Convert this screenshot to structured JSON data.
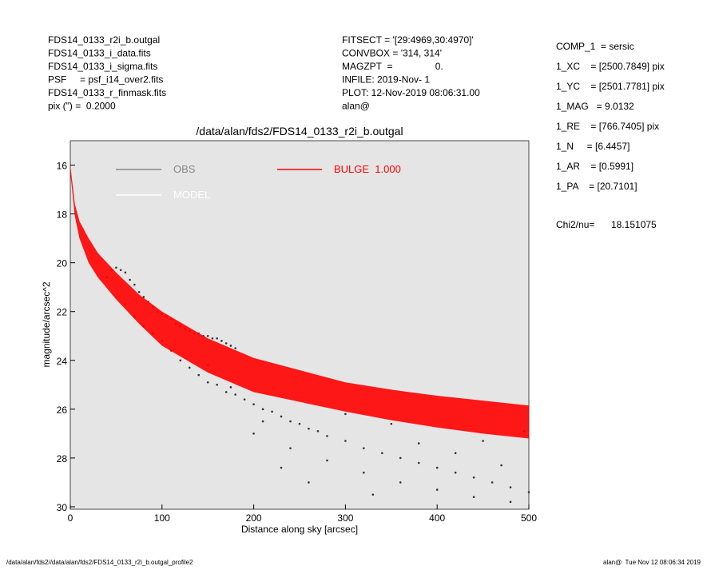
{
  "header": {
    "left": [
      "FDS14_0133_r2i_b.outgal",
      "FDS14_0133_i_data.fits",
      "FDS14_0133_i_sigma.fits",
      "PSF     = psf_i14_over2.fits",
      "FDS14_0133_r_finmask.fits",
      "pix (\") =  0.2000"
    ],
    "middle": [
      "FITSECT = '[29:4969,30:4970]'",
      "CONVBOX = '314, 314'",
      "MAGZPT  =                0.",
      "INFILE: 2019-Nov- 1",
      "PLOT: 12-Nov-2019 08:06:31.00",
      "alan@"
    ],
    "right": [
      "COMP_1  = sersic",
      "1_XC    = [2500.7849] pix",
      "1_YC    = [2501.7781] pix",
      "1_MAG   = 9.0132",
      "1_RE    = [766.7405] pix",
      "1_N     = [6.4457]",
      "1_AR    = [0.5991]",
      "1_PA    = [20.7101]"
    ],
    "chi": [
      "Chi2/nu=",
      "18.151075"
    ]
  },
  "footer": {
    "left": "/data/alan/fds2//data/alan/fds2/FDS14_0133_r2i_b.outgal_profile2",
    "right": "alan@  Tue Nov 12 08:06:34 2019"
  },
  "chart_data": {
    "type": "scatter",
    "title": "/data/alan/fds2/FDS14_0133_r2i_b.outgal",
    "xlabel": "Distance along sky [arcsec]",
    "ylabel": "magnitude/arcsec^2",
    "xlim": [
      0,
      500
    ],
    "ylim": [
      30.1,
      15
    ],
    "xticks": [
      0,
      100,
      200,
      300,
      400,
      500
    ],
    "yticks": [
      16,
      18,
      20,
      22,
      24,
      26,
      28,
      30
    ],
    "legend": [
      {
        "name": "OBS",
        "color": "#888888"
      },
      {
        "name": "MODEL",
        "color": "#ffffff"
      }
    ],
    "series": [
      {
        "name": "OBS",
        "color": "#333333",
        "x": [
          40,
          45,
          50,
          55,
          60,
          65,
          70,
          75,
          80,
          85,
          90,
          95,
          100,
          105,
          110,
          115,
          120,
          125,
          130,
          135,
          140,
          145,
          150,
          155,
          160,
          165,
          170,
          175,
          180,
          60,
          70,
          80,
          90,
          100,
          110,
          120,
          130,
          140,
          150,
          160,
          170,
          180,
          190,
          200,
          210,
          220,
          230,
          240,
          250,
          260,
          270,
          280,
          300,
          320,
          340,
          360,
          380,
          400,
          420,
          440,
          460,
          480,
          500,
          200,
          240,
          280,
          320,
          360,
          400,
          440,
          480,
          300,
          350,
          450,
          230,
          260,
          330,
          380,
          420,
          470,
          495,
          150,
          175,
          210
        ],
        "values": [
          20.6,
          20.3,
          20.2,
          20.3,
          20.4,
          20.7,
          20.9,
          21.2,
          21.4,
          21.6,
          21.8,
          22.0,
          22.1,
          22.2,
          22.3,
          22.5,
          22.6,
          22.7,
          22.8,
          22.9,
          22.9,
          23.0,
          23.0,
          23.1,
          23.1,
          23.2,
          23.3,
          23.4,
          23.5,
          21.7,
          22.2,
          22.6,
          22.9,
          23.2,
          23.6,
          24.0,
          24.3,
          24.6,
          24.9,
          25.0,
          25.3,
          25.4,
          25.6,
          25.8,
          26.0,
          26.1,
          26.3,
          26.5,
          26.6,
          26.8,
          26.9,
          27.1,
          27.3,
          27.6,
          27.8,
          28.0,
          28.2,
          28.4,
          28.6,
          28.8,
          29.0,
          29.2,
          29.4,
          27.0,
          27.6,
          28.1,
          28.6,
          29.0,
          29.3,
          29.6,
          29.8,
          26.2,
          26.6,
          27.3,
          28.4,
          29.0,
          29.5,
          27.4,
          27.8,
          28.3,
          26.9,
          24.2,
          25.1,
          26.5
        ]
      },
      {
        "name": "BULGE  1.000",
        "color": "#ff0000",
        "x": [
          0,
          5,
          10,
          20,
          30,
          50,
          75,
          100,
          150,
          200,
          250,
          300,
          350,
          400,
          450,
          500
        ],
        "values_low": [
          16.0,
          17.6,
          18.3,
          19.0,
          19.6,
          20.4,
          21.3,
          22.0,
          23.1,
          23.9,
          24.4,
          24.9,
          25.2,
          25.45,
          25.65,
          25.85
        ],
        "values_high": [
          16.3,
          18.1,
          19.0,
          20.0,
          20.6,
          21.5,
          22.5,
          23.4,
          24.5,
          25.3,
          25.7,
          26.1,
          26.45,
          26.75,
          27.0,
          27.2
        ]
      }
    ]
  }
}
